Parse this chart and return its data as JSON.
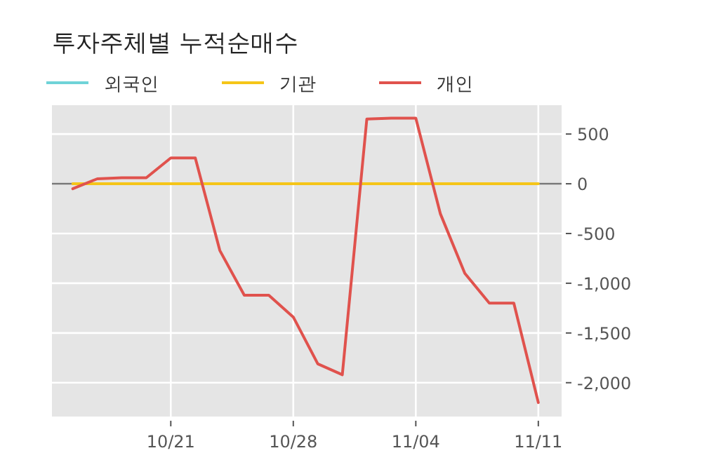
{
  "chart_data": {
    "type": "line",
    "title": "투자주체별 누적순매수",
    "categories": [
      null,
      null,
      null,
      null,
      "10/21",
      null,
      null,
      null,
      null,
      "10/28",
      null,
      null,
      null,
      null,
      "11/04",
      null,
      null,
      null,
      null,
      "11/11"
    ],
    "series": [
      {
        "name": "외국인",
        "color": "#6fd3d8",
        "values": [
          null,
          null,
          null,
          null,
          null,
          null,
          null,
          null,
          null,
          null,
          null,
          null,
          null,
          null,
          null,
          null,
          null,
          null,
          null,
          null
        ]
      },
      {
        "name": "기관",
        "color": "#f5c518",
        "values": [
          0,
          0,
          0,
          0,
          0,
          0,
          0,
          0,
          0,
          0,
          0,
          0,
          0,
          0,
          0,
          0,
          0,
          0,
          0,
          0
        ]
      },
      {
        "name": "개인",
        "color": "#e0524d",
        "values": [
          -50,
          50,
          60,
          60,
          260,
          260,
          -670,
          -1120,
          -1120,
          -1340,
          -1810,
          -1920,
          650,
          660,
          660,
          -300,
          -900,
          -1200,
          -1200,
          -2200
        ]
      }
    ],
    "ylim": [
      -2340,
      790
    ],
    "yticks": [
      {
        "value": 500,
        "label": "500"
      },
      {
        "value": 0,
        "label": "0"
      },
      {
        "value": -500,
        "label": "-500"
      },
      {
        "value": -1000,
        "label": "-1,000"
      },
      {
        "value": -1500,
        "label": "-1,500"
      },
      {
        "value": -2000,
        "label": "-2,000"
      }
    ],
    "ref_lines": [
      {
        "axis": "y",
        "value": 0,
        "color": "#777777"
      }
    ],
    "grid": true,
    "legend": "top",
    "marker": "none",
    "line_style": "solid"
  }
}
